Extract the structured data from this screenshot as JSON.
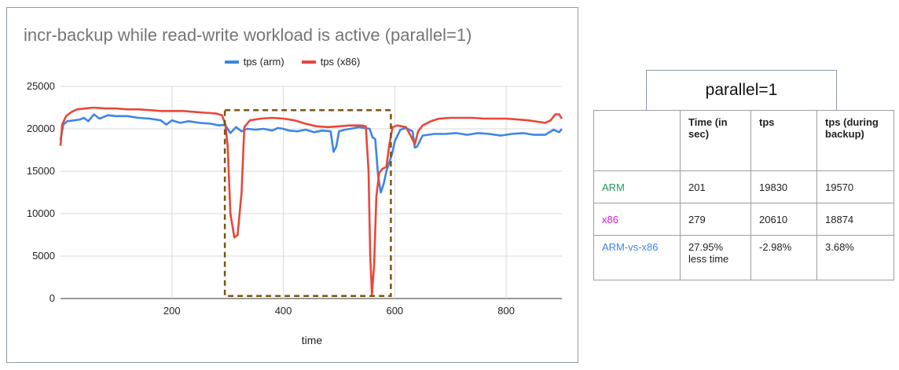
{
  "chart_data": {
    "type": "line",
    "title": "incr-backup while read-write workload is active (parallel=1)",
    "xlabel": "time",
    "ylabel": "",
    "xlim": [
      0,
      900
    ],
    "ylim": [
      0,
      25000
    ],
    "x_ticks": [
      200,
      400,
      600,
      800
    ],
    "y_ticks": [
      0,
      5000,
      10000,
      15000,
      20000,
      25000
    ],
    "grid": true,
    "legend_position": "top",
    "highlight_region": {
      "x": [
        295,
        593
      ],
      "y": [
        300,
        22200
      ],
      "style": "dashed",
      "color": "#7a5511"
    },
    "series": [
      {
        "name": "tps (arm)",
        "color": "#3d85e6",
        "points": [
          [
            0,
            18700
          ],
          [
            5,
            20500
          ],
          [
            12,
            20900
          ],
          [
            25,
            21000
          ],
          [
            35,
            21100
          ],
          [
            42,
            21300
          ],
          [
            50,
            20900
          ],
          [
            60,
            21700
          ],
          [
            70,
            21200
          ],
          [
            85,
            21600
          ],
          [
            100,
            21500
          ],
          [
            120,
            21500
          ],
          [
            140,
            21300
          ],
          [
            160,
            21200
          ],
          [
            180,
            21000
          ],
          [
            190,
            20500
          ],
          [
            200,
            21000
          ],
          [
            215,
            20700
          ],
          [
            230,
            20900
          ],
          [
            250,
            20700
          ],
          [
            270,
            20600
          ],
          [
            285,
            20400
          ],
          [
            295,
            20500
          ],
          [
            305,
            19500
          ],
          [
            315,
            20200
          ],
          [
            325,
            19700
          ],
          [
            335,
            20000
          ],
          [
            350,
            19900
          ],
          [
            365,
            20000
          ],
          [
            380,
            19800
          ],
          [
            390,
            20100
          ],
          [
            400,
            20000
          ],
          [
            410,
            19800
          ],
          [
            425,
            19700
          ],
          [
            440,
            19900
          ],
          [
            455,
            19600
          ],
          [
            470,
            19800
          ],
          [
            485,
            19700
          ],
          [
            490,
            17300
          ],
          [
            495,
            17900
          ],
          [
            500,
            19700
          ],
          [
            510,
            19900
          ],
          [
            520,
            20000
          ],
          [
            535,
            20200
          ],
          [
            545,
            20100
          ],
          [
            555,
            20000
          ],
          [
            560,
            19000
          ],
          [
            565,
            18800
          ],
          [
            570,
            14500
          ],
          [
            575,
            12500
          ],
          [
            580,
            13500
          ],
          [
            585,
            15000
          ],
          [
            590,
            16000
          ],
          [
            595,
            17000
          ],
          [
            600,
            18500
          ],
          [
            610,
            19900
          ],
          [
            620,
            20100
          ],
          [
            632,
            19700
          ],
          [
            636,
            17800
          ],
          [
            640,
            17900
          ],
          [
            650,
            19200
          ],
          [
            670,
            19400
          ],
          [
            690,
            19400
          ],
          [
            710,
            19500
          ],
          [
            730,
            19300
          ],
          [
            750,
            19500
          ],
          [
            770,
            19400
          ],
          [
            790,
            19200
          ],
          [
            810,
            19400
          ],
          [
            830,
            19500
          ],
          [
            850,
            19300
          ],
          [
            870,
            19300
          ],
          [
            885,
            19900
          ],
          [
            895,
            19600
          ],
          [
            900,
            20000
          ]
        ]
      },
      {
        "name": "tps (x86)",
        "color": "#e8473a",
        "points": [
          [
            0,
            18000
          ],
          [
            3,
            20500
          ],
          [
            10,
            21500
          ],
          [
            20,
            22000
          ],
          [
            30,
            22300
          ],
          [
            45,
            22400
          ],
          [
            60,
            22500
          ],
          [
            80,
            22400
          ],
          [
            100,
            22400
          ],
          [
            120,
            22300
          ],
          [
            140,
            22300
          ],
          [
            160,
            22200
          ],
          [
            180,
            22100
          ],
          [
            200,
            22100
          ],
          [
            220,
            22100
          ],
          [
            240,
            22000
          ],
          [
            260,
            21900
          ],
          [
            280,
            21800
          ],
          [
            290,
            21600
          ],
          [
            296,
            20500
          ],
          [
            300,
            18000
          ],
          [
            305,
            10000
          ],
          [
            312,
            7200
          ],
          [
            318,
            7500
          ],
          [
            325,
            12500
          ],
          [
            330,
            20200
          ],
          [
            340,
            21000
          ],
          [
            360,
            21200
          ],
          [
            380,
            21300
          ],
          [
            400,
            21200
          ],
          [
            420,
            21000
          ],
          [
            440,
            20600
          ],
          [
            460,
            20300
          ],
          [
            480,
            20200
          ],
          [
            500,
            20300
          ],
          [
            520,
            20400
          ],
          [
            540,
            20400
          ],
          [
            548,
            20300
          ],
          [
            553,
            15000
          ],
          [
            556,
            5000
          ],
          [
            559,
            500
          ],
          [
            563,
            4000
          ],
          [
            567,
            12000
          ],
          [
            572,
            14800
          ],
          [
            578,
            15300
          ],
          [
            585,
            15500
          ],
          [
            590,
            18000
          ],
          [
            596,
            20200
          ],
          [
            605,
            20400
          ],
          [
            620,
            20200
          ],
          [
            630,
            19000
          ],
          [
            636,
            18200
          ],
          [
            642,
            19700
          ],
          [
            650,
            20400
          ],
          [
            665,
            20900
          ],
          [
            680,
            21200
          ],
          [
            700,
            21300
          ],
          [
            720,
            21300
          ],
          [
            740,
            21300
          ],
          [
            760,
            21200
          ],
          [
            780,
            21200
          ],
          [
            800,
            21200
          ],
          [
            820,
            21100
          ],
          [
            840,
            21000
          ],
          [
            860,
            20800
          ],
          [
            870,
            20700
          ],
          [
            880,
            21000
          ],
          [
            888,
            21700
          ],
          [
            895,
            21700
          ],
          [
            900,
            21200
          ]
        ]
      }
    ]
  },
  "parallel_label": "parallel=1",
  "table": {
    "headers": [
      "",
      "Time (in sec)",
      "tps",
      "tps (during backup)"
    ],
    "rows": [
      {
        "label": "ARM",
        "label_color": "#1f9a5b",
        "values": [
          "201",
          "19830",
          "19570"
        ]
      },
      {
        "label": "x86",
        "label_color": "#d01fd5",
        "values": [
          "279",
          "20610",
          "18874"
        ]
      },
      {
        "label": "ARM-vs-x86",
        "label_color": "#3d85e6",
        "values": [
          "27.95% less time",
          "-2.98%",
          "3.68%"
        ]
      }
    ]
  }
}
